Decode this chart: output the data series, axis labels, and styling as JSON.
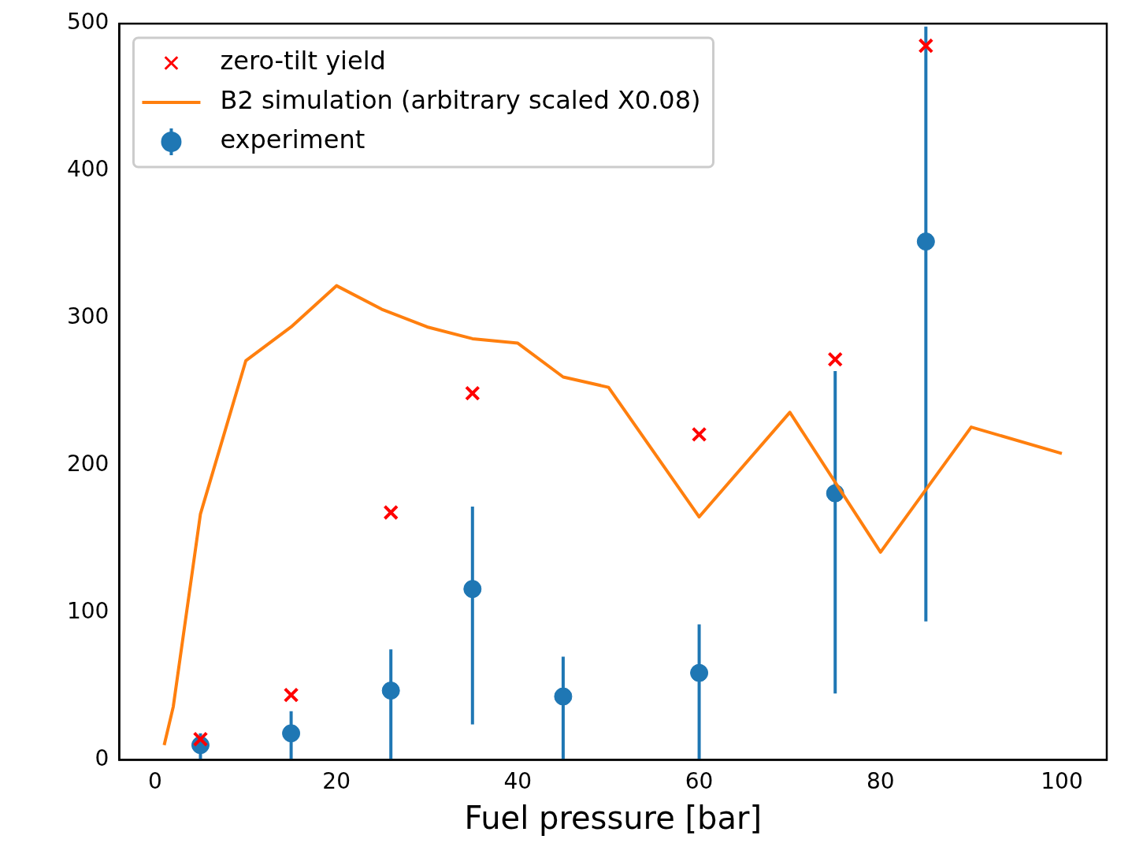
{
  "chart_data": {
    "type": "scatter",
    "xlabel": "Fuel pressure [bar]",
    "xlim": [
      -3.95,
      104.95
    ],
    "ylim": [
      0,
      500
    ],
    "xticks": [
      0,
      20,
      40,
      60,
      80,
      100
    ],
    "yticks": [
      0,
      100,
      200,
      300,
      400,
      500
    ],
    "grid": false,
    "legend": "top left",
    "series": [
      {
        "name": "zero-tilt yield",
        "marker": "cross",
        "color": "#ff0000",
        "x": [
          5,
          15,
          26,
          35,
          60,
          75,
          85
        ],
        "values": [
          14,
          44,
          168,
          249,
          221,
          272,
          485
        ]
      },
      {
        "name": "B2 simulation (arbitrary scaled X0.08)",
        "type": "line",
        "marker": "none",
        "color": "#ff7f0e",
        "x": [
          1,
          2,
          5,
          10,
          15,
          20,
          25,
          30,
          35,
          40,
          45,
          50,
          60,
          70,
          80,
          90,
          100
        ],
        "values": [
          10,
          36,
          167,
          271,
          294,
          322,
          306,
          294,
          286,
          283,
          260,
          253,
          165,
          236,
          141,
          226,
          208
        ]
      },
      {
        "name": "experiment",
        "marker": "circle",
        "color": "#1f77b4",
        "x": [
          5,
          15,
          26,
          35,
          45,
          60,
          75,
          85
        ],
        "values": [
          10,
          18,
          47,
          116,
          43,
          59,
          181,
          352
        ],
        "errors": [
          [
            0,
            18
          ],
          [
            0,
            33
          ],
          [
            0,
            75
          ],
          [
            24,
            172
          ],
          [
            0,
            70
          ],
          [
            0,
            92
          ],
          [
            45,
            264
          ],
          [
            94,
            498
          ]
        ]
      }
    ]
  }
}
